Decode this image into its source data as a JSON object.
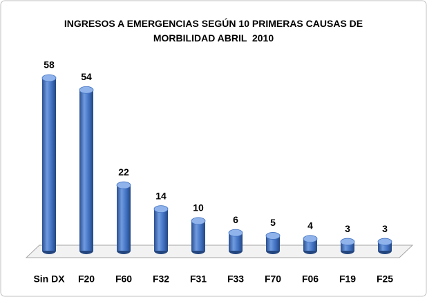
{
  "chart_data": {
    "type": "bar",
    "title": "INGRESOS A EMERGENCIAS SEGÚN 10 PRIMERAS CAUSAS DE MORBILIDAD ABRIL  2010",
    "categories": [
      "Sin DX",
      "F20",
      "F60",
      "F32",
      "F31",
      "F33",
      "F70",
      "F06",
      "F19",
      "F25"
    ],
    "values": [
      58,
      54,
      22,
      14,
      10,
      6,
      5,
      4,
      3,
      3
    ],
    "color": "#3f6fbf"
  }
}
